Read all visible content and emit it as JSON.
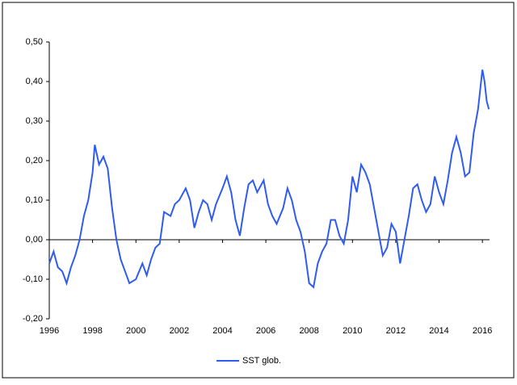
{
  "chart_data": {
    "type": "line",
    "x": [
      1996.0,
      1996.2,
      1996.4,
      1996.6,
      1996.8,
      1997.0,
      1997.2,
      1997.4,
      1997.6,
      1997.8,
      1998.0,
      1998.1,
      1998.3,
      1998.5,
      1998.7,
      1998.9,
      1999.1,
      1999.3,
      1999.5,
      1999.7,
      2000.0,
      2000.3,
      2000.5,
      2000.7,
      2000.9,
      2001.1,
      2001.3,
      2001.6,
      2001.8,
      2002.0,
      2002.3,
      2002.5,
      2002.7,
      2002.9,
      2003.1,
      2003.3,
      2003.5,
      2003.7,
      2004.0,
      2004.2,
      2004.4,
      2004.6,
      2004.8,
      2005.0,
      2005.2,
      2005.4,
      2005.6,
      2005.9,
      2006.1,
      2006.3,
      2006.5,
      2006.8,
      2007.0,
      2007.2,
      2007.4,
      2007.6,
      2007.8,
      2008.0,
      2008.2,
      2008.4,
      2008.6,
      2008.8,
      2009.0,
      2009.2,
      2009.4,
      2009.6,
      2009.8,
      2010.0,
      2010.2,
      2010.4,
      2010.6,
      2010.8,
      2011.0,
      2011.2,
      2011.4,
      2011.6,
      2011.8,
      2012.0,
      2012.2,
      2012.4,
      2012.6,
      2012.8,
      2013.0,
      2013.2,
      2013.4,
      2013.6,
      2013.8,
      2014.0,
      2014.2,
      2014.4,
      2014.6,
      2014.8,
      2015.0,
      2015.2,
      2015.4,
      2015.6,
      2015.8,
      2016.0,
      2016.1,
      2016.2,
      2016.3
    ],
    "series": [
      {
        "name": "SST glob.",
        "color": "#2f5cf0",
        "values": [
          -0.06,
          -0.03,
          -0.07,
          -0.08,
          -0.11,
          -0.07,
          -0.04,
          0.0,
          0.06,
          0.1,
          0.17,
          0.24,
          0.19,
          0.21,
          0.18,
          0.08,
          0.0,
          -0.05,
          -0.08,
          -0.11,
          -0.1,
          -0.06,
          -0.09,
          -0.05,
          -0.02,
          -0.01,
          0.07,
          0.06,
          0.09,
          0.1,
          0.13,
          0.1,
          0.03,
          0.07,
          0.1,
          0.09,
          0.05,
          0.09,
          0.13,
          0.16,
          0.12,
          0.05,
          0.01,
          0.08,
          0.14,
          0.15,
          0.12,
          0.15,
          0.09,
          0.06,
          0.04,
          0.08,
          0.13,
          0.1,
          0.05,
          0.02,
          -0.03,
          -0.11,
          -0.12,
          -0.06,
          -0.03,
          -0.01,
          0.05,
          0.05,
          0.01,
          -0.01,
          0.05,
          0.16,
          0.12,
          0.19,
          0.17,
          0.14,
          0.08,
          0.02,
          -0.04,
          -0.02,
          0.04,
          0.02,
          -0.06,
          0.0,
          0.06,
          0.13,
          0.14,
          0.1,
          0.07,
          0.09,
          0.16,
          0.12,
          0.09,
          0.15,
          0.22,
          0.26,
          0.22,
          0.16,
          0.17,
          0.27,
          0.33,
          0.43,
          0.4,
          0.35,
          0.33
        ]
      }
    ],
    "xlim": [
      1996,
      2016.33
    ],
    "xticks": [
      1996,
      1998,
      2000,
      2002,
      2004,
      2006,
      2008,
      2010,
      2012,
      2014,
      2016
    ],
    "ylim": [
      -0.2,
      0.5
    ],
    "yticks": [
      {
        "value": -0.2,
        "label": "-0,20"
      },
      {
        "value": -0.1,
        "label": "-0,10"
      },
      {
        "value": 0,
        "label": "0,00"
      },
      {
        "value": 0.1,
        "label": "0,10"
      },
      {
        "value": 0.2,
        "label": "0,20"
      },
      {
        "value": 0.3,
        "label": "0,30"
      },
      {
        "value": 0.4,
        "label": "0,40"
      },
      {
        "value": 0.5,
        "label": "0,50"
      }
    ]
  }
}
